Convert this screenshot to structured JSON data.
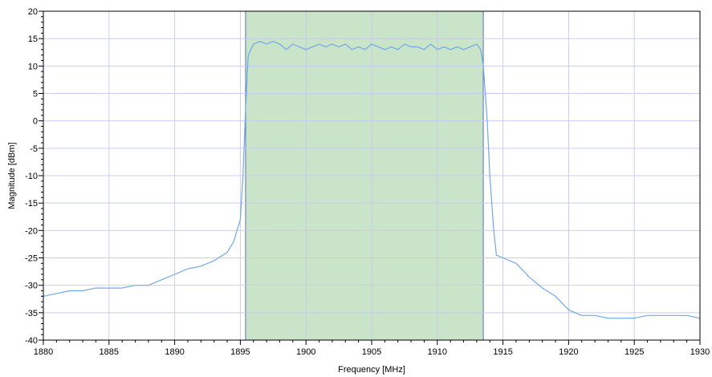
{
  "chart_data": {
    "type": "line",
    "xlabel": "Frequency [MHz]",
    "ylabel": "Magnitude [dBm]",
    "xlim": [
      1880,
      1930
    ],
    "ylim": [
      -40,
      20
    ],
    "x_ticks": [
      1880,
      1885,
      1890,
      1895,
      1900,
      1905,
      1910,
      1915,
      1920,
      1925,
      1930
    ],
    "y_ticks": [
      -40,
      -35,
      -30,
      -25,
      -20,
      -15,
      -10,
      -5,
      0,
      5,
      10,
      15,
      20
    ],
    "grid": true,
    "highlight_band": {
      "x_start": 1895.4,
      "x_end": 1913.5,
      "color": "#c9e4c9"
    },
    "band_edge_color": "#5b6fb8",
    "series_color": "#6fa8e8",
    "grid_color": "#c8c8ec",
    "series": [
      {
        "x": [
          1880,
          1881,
          1882,
          1883,
          1884,
          1885,
          1886,
          1887,
          1888,
          1889,
          1890,
          1891,
          1892,
          1893,
          1894,
          1894.5,
          1895,
          1895.2,
          1895.4,
          1895.6,
          1896,
          1896.5,
          1897,
          1897.5,
          1898,
          1898.5,
          1899,
          1899.5,
          1900,
          1900.5,
          1901,
          1901.5,
          1902,
          1902.5,
          1903,
          1903.5,
          1904,
          1904.5,
          1905,
          1905.5,
          1906,
          1906.5,
          1907,
          1907.5,
          1908,
          1908.5,
          1909,
          1909.5,
          1910,
          1910.5,
          1911,
          1911.5,
          1912,
          1912.5,
          1913,
          1913.3,
          1913.5,
          1913.8,
          1914,
          1914.3,
          1914.5,
          1915,
          1916,
          1917,
          1918,
          1919,
          1920,
          1921,
          1922,
          1923,
          1924,
          1925,
          1926,
          1927,
          1928,
          1929,
          1930
        ],
        "values": [
          -32,
          -31.5,
          -31,
          -31,
          -30.5,
          -30.5,
          -30.5,
          -30,
          -30,
          -29,
          -28,
          -27,
          -26.5,
          -25.5,
          -24,
          -22,
          -18,
          -10,
          2,
          12,
          14,
          14.5,
          14,
          14.5,
          14,
          13,
          14,
          13.5,
          13,
          13.5,
          14,
          13.5,
          14,
          13.5,
          14,
          13,
          13.5,
          13,
          14,
          13.5,
          13,
          13.5,
          13,
          14,
          13.5,
          13.5,
          13,
          14,
          13,
          13.5,
          13,
          13.5,
          13,
          13.5,
          14,
          13,
          10,
          0,
          -10,
          -20,
          -24.5,
          -25,
          -26,
          -28.5,
          -30.5,
          -32,
          -34.5,
          -35.5,
          -35.5,
          -36,
          -36,
          -36,
          -35.5,
          -35.5,
          -35.5,
          -35.5,
          -36
        ]
      }
    ]
  }
}
